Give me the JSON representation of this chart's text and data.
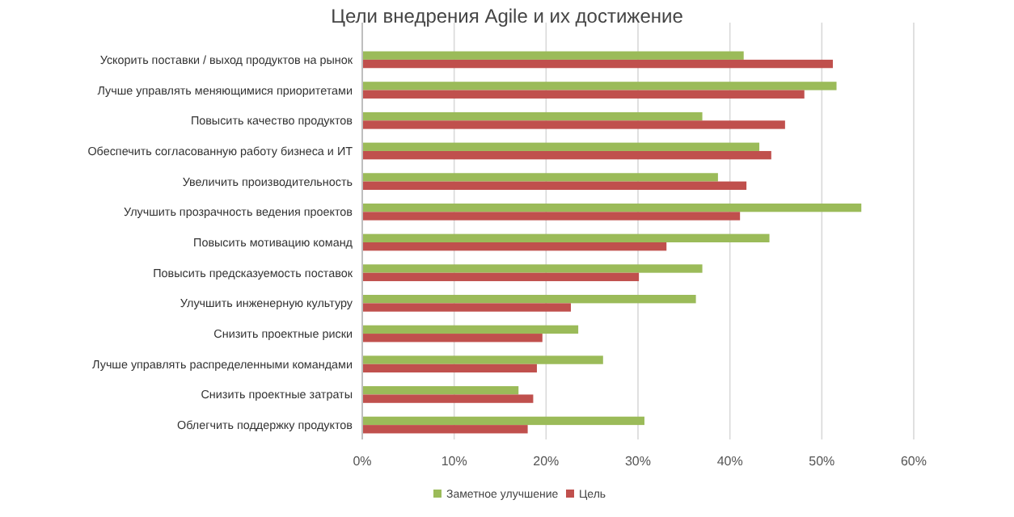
{
  "chart_data": {
    "type": "bar",
    "orientation": "horizontal",
    "title": "Цели внедрения Agile и их достижение",
    "categories": [
      "Ускорить поставки / выход продуктов на рынок",
      "Лучше управлять меняющимися приоритетами",
      "Повысить качество продуктов",
      "Обеспечить согласованную работу бизнеса и ИТ",
      "Увеличить производительность",
      "Улучшить прозрачность ведения проектов",
      "Повысить мотивацию команд",
      "Повысить предсказуемость поставок",
      "Улучшить инженерную культуру",
      "Снизить проектные риски",
      "Лучше управлять распределенными командами",
      "Снизить проектные затраты",
      "Облегчить поддержку продуктов"
    ],
    "series": [
      {
        "name": "Заметное улучшение",
        "color": "#9bbb59",
        "values": [
          41.5,
          51.6,
          37,
          43.2,
          38.7,
          54.3,
          44.3,
          37,
          36.3,
          23.5,
          26.2,
          17,
          30.7
        ]
      },
      {
        "name": "Цель",
        "color": "#c0504d",
        "values": [
          51.2,
          48.1,
          46,
          44.5,
          41.8,
          41.1,
          33.1,
          30.1,
          22.7,
          19.6,
          19,
          18.6,
          18
        ]
      }
    ],
    "xlim": [
      0,
      60
    ],
    "xticks": [
      {
        "value": 0,
        "label": "0%"
      },
      {
        "value": 10,
        "label": "10%"
      },
      {
        "value": 20,
        "label": "20%"
      },
      {
        "value": 30,
        "label": "30%"
      },
      {
        "value": 40,
        "label": "40%"
      },
      {
        "value": 50,
        "label": "50%"
      },
      {
        "value": 60,
        "label": "60%"
      }
    ],
    "grid": "x",
    "legend": "bottom"
  }
}
